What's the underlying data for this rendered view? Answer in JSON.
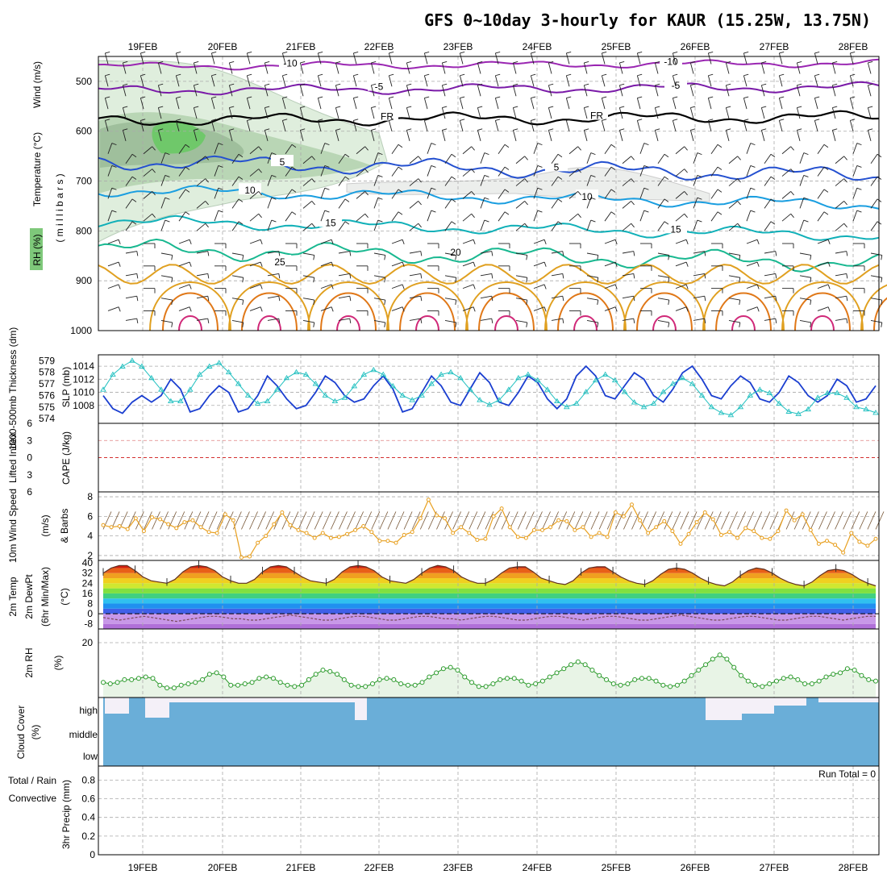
{
  "title": "GFS 0~10day 3-hourly for KAUR (15.25W, 13.75N)",
  "colors": {
    "c_neg10": "#9a26b2",
    "c_neg5": "#7a1aa8",
    "c_fr": "#000000",
    "c_5": "#2450d0",
    "c_10": "#1a9ee0",
    "c_15": "#10b0b8",
    "c_20": "#18b890",
    "c_25": "#e0a020",
    "c_30": "#e07818",
    "c_35": "#d02878",
    "slp": "#1a3ed0",
    "thick": "#22c0c0",
    "wind10": "#e8a020",
    "rh": "#2a9a2a",
    "cloud": "#6aaed8",
    "cloudtop": "#f4f0f8"
  },
  "chart_data": [
    {
      "type": "line",
      "panel": "sounding",
      "title": "GFS 0~10day 3-hourly for KAUR (15.25W, 13.75N)",
      "ylabel_parts": [
        "RH (%)",
        "Temperature (°C)",
        "Wind (m/s)"
      ],
      "ylabel2": "( m i l l i b a r s )",
      "x_ticks": [
        "19FEB",
        "20FEB",
        "21FEB",
        "22FEB",
        "23FEB",
        "24FEB",
        "25FEB",
        "26FEB",
        "27FEB",
        "28FEB"
      ],
      "y_ticks": [
        500,
        600,
        700,
        800,
        900,
        1000
      ],
      "ylim": [
        450,
        1000
      ],
      "isotherms": [
        {
          "label": "-10",
          "level": 470,
          "amp": 3
        },
        {
          "label": "-5",
          "level": 518,
          "amp": 4
        },
        {
          "label": "FR",
          "level": 578,
          "amp": 5
        },
        {
          "label": "5",
          "level": 660,
          "amp": 7
        },
        {
          "label": "10",
          "level": 718,
          "amp": 5
        },
        {
          "label": "15",
          "level": 780,
          "amp": 5
        },
        {
          "label": "20",
          "level": 835,
          "amp": 8
        },
        {
          "label": "25",
          "level": 890,
          "amp": 0
        }
      ]
    },
    {
      "type": "line",
      "panel": "slp_thickness",
      "ylabel_left": "1000-500mb Thickness (dm)",
      "ylabel_right": "SLP (mb)",
      "y_ticks_thickness": [
        574,
        575,
        576,
        577,
        578,
        579
      ],
      "y_ticks_slp": [
        1008,
        1010,
        1012,
        1014
      ],
      "series": [
        {
          "name": "SLP (mb)",
          "values": [
            1009.5,
            1007.5,
            1006.8,
            1008.5,
            1009.5,
            1008.5,
            1009.5,
            1012,
            1010.5,
            1007,
            1007.5,
            1009.5,
            1011,
            1010,
            1007,
            1007.5,
            1009.5,
            1012.5,
            1011,
            1009,
            1007.5,
            1008,
            1010,
            1012.5,
            1011.5,
            1009.5,
            1008.5,
            1009,
            1011,
            1012.5,
            1010.5,
            1007,
            1007.5,
            1010,
            1012.5,
            1011,
            1008.5,
            1008,
            1010.5,
            1013,
            1011.5,
            1008.5,
            1008,
            1010,
            1012.5,
            1011.5,
            1009,
            1007.5,
            1009,
            1012.5,
            1014,
            1012.5,
            1009.5,
            1009,
            1011,
            1013,
            1012,
            1009.5,
            1008.5,
            1010.5,
            1013,
            1014,
            1012,
            1009.5,
            1009,
            1011,
            1012.5,
            1011.5,
            1009,
            1008.5,
            1010,
            1012.5,
            1011.5,
            1009.5,
            1008.5,
            1009.5,
            1012,
            1011,
            1008.5,
            1009,
            1011
          ]
        },
        {
          "name": "1000-500mb Thickness (dm)",
          "values": [
            576.5,
            577.8,
            578.5,
            579,
            578.5,
            577.5,
            576.5,
            575.5,
            575.5,
            576.5,
            577.8,
            578.5,
            578.8,
            578,
            577,
            576,
            575.3,
            575.5,
            576.5,
            577.5,
            578,
            577.8,
            577,
            576,
            575.5,
            575.8,
            576.8,
            577.8,
            578.2,
            577.8,
            576.8,
            576,
            575.6,
            576,
            577,
            577.8,
            578,
            577.5,
            576.5,
            575.6,
            575.2,
            575.6,
            576.5,
            577.5,
            577.8,
            577.3,
            576.5,
            575.5,
            575,
            575.3,
            576.3,
            577.3,
            577.8,
            577.3,
            576.3,
            575.4,
            575,
            575.3,
            576.3,
            577,
            577.5,
            577,
            576,
            575,
            574.5,
            574.3,
            575,
            576,
            576.5,
            576.2,
            575.3,
            574.6,
            574.4,
            574.8,
            575.8,
            576.2,
            576.2,
            575.8,
            575,
            574.8,
            574.5
          ]
        }
      ]
    },
    {
      "type": "line",
      "panel": "lifted_index_cape",
      "ylabel_left": "Lifted Index",
      "ylabel_right": "CAPE (J/kg)",
      "y_ticks": [
        "6",
        "3",
        "0",
        "3",
        "6"
      ],
      "ylim": [
        -6,
        6
      ]
    },
    {
      "type": "line",
      "panel": "wind10m",
      "ylabel": "10m Wind Speed",
      "ylabel_unit": "(m/s)",
      "ylabel_extra": "& Barbs",
      "y_ticks": [
        2,
        4,
        6,
        8
      ],
      "ylim": [
        1.5,
        8.5
      ],
      "series": [
        {
          "name": "10m Wind Speed",
          "values": [
            5.1,
            4.9,
            5.0,
            4.7,
            5.8,
            4.5,
            5.9,
            5.7,
            5.2,
            4.8,
            5.4,
            5.6,
            4.9,
            4.4,
            4.3,
            6.2,
            5.6,
            1.8,
            1.9,
            3.3,
            4.0,
            5.2,
            6.4,
            5.1,
            4.6,
            4.3,
            3.8,
            4.3,
            3.8,
            3.9,
            4.2,
            4.6,
            5.0,
            4.4,
            3.5,
            3.5,
            3.3,
            4.1,
            4.4,
            5.8,
            7.7,
            6.1,
            5.8,
            4.3,
            4.9,
            4.3,
            3.6,
            3.7,
            6.0,
            6.8,
            4.9,
            3.9,
            3.8,
            4.6,
            4.6,
            4.9,
            5.6,
            5.5,
            4.6,
            4.9,
            3.9,
            4.3,
            3.9,
            6.4,
            6.0,
            7.2,
            5.6,
            4.3,
            4.9,
            5.5,
            4.5,
            3.2,
            4.2,
            5.4,
            6.4,
            5.7,
            4.1,
            4.4,
            3.8,
            4.8,
            4.5,
            3.8,
            3.7,
            4.5,
            6.6,
            5.6,
            6.2,
            4.6,
            3.2,
            3.5,
            3.1,
            2.3,
            4.3,
            3.4,
            3.0,
            3.7
          ]
        }
      ]
    },
    {
      "type": "area",
      "panel": "temp2m",
      "ylabel_parts": [
        "2m Temp",
        "2m DewPt",
        "(6hr Min/Max)"
      ],
      "ylabel_unit": "(°C)",
      "y_ticks": [
        40,
        32,
        24,
        16,
        8,
        0,
        -8
      ],
      "ylim": [
        -12,
        42
      ],
      "series": [
        {
          "name": "2m Temp",
          "values": [
            32,
            36,
            38,
            38,
            34,
            29,
            26,
            25,
            24,
            27,
            33,
            37,
            38,
            37,
            34,
            29,
            26,
            24,
            24,
            27,
            33,
            37,
            38,
            37,
            33,
            29,
            26,
            25,
            24,
            27,
            33,
            37,
            38,
            37,
            34,
            29,
            26,
            25,
            24,
            27,
            32,
            36,
            38,
            37,
            34,
            29,
            26,
            24,
            24,
            27,
            32,
            36,
            37,
            37,
            33,
            28,
            26,
            24,
            23,
            26,
            32,
            36,
            37,
            37,
            33,
            29,
            26,
            24,
            23,
            26,
            31,
            35,
            36,
            35,
            32,
            28,
            25,
            23,
            22,
            25,
            30,
            34,
            36,
            35,
            32,
            28,
            25,
            23,
            22,
            25,
            30,
            34,
            35,
            34,
            31,
            27,
            24,
            22
          ]
        },
        {
          "name": "2m DewPt",
          "values": [
            -3,
            -4,
            -5,
            -4,
            -3,
            -2,
            -3,
            -4,
            -5,
            -6,
            -5,
            -4,
            -3,
            -2,
            -2,
            -3,
            -4,
            -4,
            -5,
            -5,
            -4,
            -3,
            -2,
            -1,
            -2,
            -3,
            -4,
            -5,
            -5,
            -4,
            -3,
            -2,
            -2,
            -3,
            -4,
            -5,
            -5,
            -4,
            -3,
            -2,
            -2,
            -3,
            -4,
            -4,
            -5,
            -4,
            -3,
            -2,
            -2,
            -3,
            -4,
            -5,
            -5,
            -4,
            -3,
            -2,
            -2,
            -3,
            -4,
            -5,
            -4,
            -3,
            -2,
            -2,
            -3,
            -4,
            -5,
            -5,
            -4,
            -3,
            -2,
            -1,
            -2,
            -3,
            -4,
            -5,
            -5,
            -4,
            -3,
            -2,
            -2,
            -3,
            -4,
            -5,
            -5,
            -4,
            -3,
            -2,
            -2,
            -3,
            -4,
            -5,
            -4,
            -3,
            -2,
            -2
          ]
        }
      ]
    },
    {
      "type": "area",
      "panel": "rh2m",
      "ylabel": "2m RH",
      "ylabel_unit": "(%)",
      "y_ticks": [
        20
      ],
      "ylim": [
        0,
        25
      ],
      "series": [
        {
          "name": "2m RH",
          "values": [
            5.5,
            5,
            5.5,
            6.5,
            6.5,
            7,
            7.5,
            7,
            4.5,
            3.5,
            3.5,
            4.5,
            5,
            5.5,
            6.5,
            8.5,
            9,
            7.5,
            4.5,
            4.5,
            5,
            5.5,
            7,
            7.5,
            7,
            5.5,
            4.5,
            4,
            4.5,
            6.5,
            8.5,
            10,
            9.5,
            8.5,
            6.5,
            4.5,
            4,
            4,
            5,
            6.5,
            7,
            6.5,
            5,
            4.5,
            4.5,
            5.5,
            7.5,
            9,
            10.5,
            11,
            10,
            7.5,
            5.5,
            4,
            4,
            5,
            6.5,
            7,
            7,
            6,
            4.5,
            5,
            6,
            7.5,
            9,
            10.5,
            12,
            13,
            12,
            10,
            8,
            6.5,
            5,
            4.5,
            5,
            6.5,
            7,
            7,
            6,
            4.5,
            4,
            4.5,
            6,
            8,
            10,
            12,
            14,
            15.5,
            14,
            11,
            8,
            6,
            4.5,
            4,
            5,
            6,
            7,
            7.5,
            6.5,
            5,
            5,
            6,
            7.5,
            8.5,
            9,
            10.5,
            10,
            8,
            6.5,
            6
          ]
        }
      ]
    },
    {
      "type": "bar",
      "panel": "cloud",
      "ylabel": "Cloud Cover",
      "ylabel_unit": "(%)",
      "y_ticks": [
        "high",
        "middle",
        "low"
      ]
    },
    {
      "type": "bar",
      "panel": "precip",
      "ylabel_parts": [
        "Total / Rain",
        "Convective"
      ],
      "ylabel_main": "3hr Precip (mm)",
      "y_ticks": [
        0,
        0.2,
        0.4,
        0.6,
        0.8
      ],
      "ylim": [
        0,
        0.95
      ],
      "run_total": "Run Total = 0",
      "x_ticks": [
        "19FEB",
        "20FEB",
        "21FEB",
        "22FEB",
        "23FEB",
        "24FEB",
        "25FEB",
        "26FEB",
        "27FEB",
        "28FEB"
      ]
    }
  ]
}
